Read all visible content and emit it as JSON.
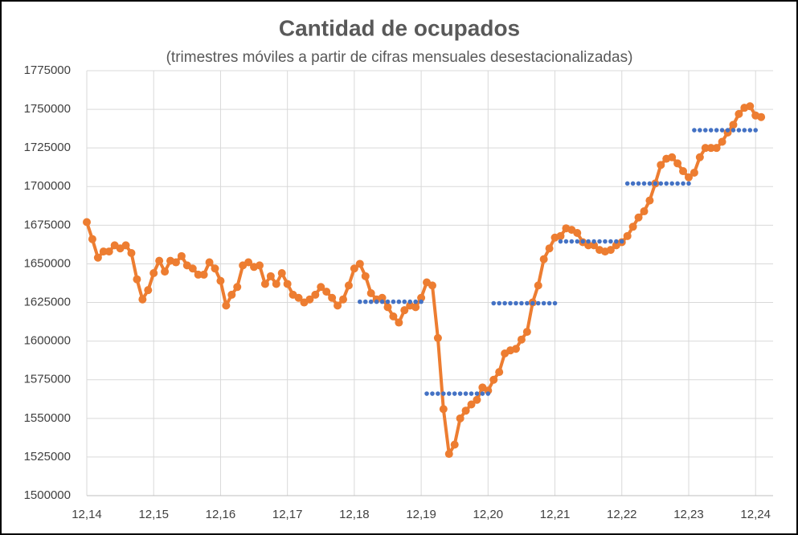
{
  "chart_data": {
    "type": "line",
    "title": "Cantidad de ocupados",
    "subtitle": "(trimestres móviles  a partir de cifras mensuales  desestacionalizadas)",
    "categories": [
      "12,14",
      null,
      null,
      null,
      null,
      null,
      null,
      null,
      null,
      null,
      null,
      null,
      "12,15",
      null,
      null,
      null,
      null,
      null,
      null,
      null,
      null,
      null,
      null,
      null,
      "12,16",
      null,
      null,
      null,
      null,
      null,
      null,
      null,
      null,
      null,
      null,
      null,
      "12,17",
      null,
      null,
      null,
      null,
      null,
      null,
      null,
      null,
      null,
      null,
      null,
      "12,18",
      null,
      null,
      null,
      null,
      null,
      null,
      null,
      null,
      null,
      null,
      null,
      "12,19",
      null,
      null,
      null,
      null,
      null,
      null,
      null,
      null,
      null,
      null,
      null,
      "12,20",
      null,
      null,
      null,
      null,
      null,
      null,
      null,
      null,
      null,
      null,
      null,
      "12,21",
      null,
      null,
      null,
      null,
      null,
      null,
      null,
      null,
      null,
      null,
      null,
      "12,22",
      null,
      null,
      null,
      null,
      null,
      null,
      null,
      null,
      null,
      null,
      null,
      "12,23",
      null,
      null,
      null,
      null,
      null,
      null,
      null,
      null,
      null,
      null,
      null,
      "12,24",
      null
    ],
    "series": [
      {
        "color": "#ed7d31",
        "values": [
          1677000,
          1666000,
          1654000,
          1658000,
          1658000,
          1662000,
          1660000,
          1662000,
          1657000,
          1640000,
          1627000,
          1633000,
          1644000,
          1652000,
          1645000,
          1652000,
          1651000,
          1655000,
          1649000,
          1647000,
          1643000,
          1643000,
          1651000,
          1647000,
          1639000,
          1623000,
          1630000,
          1635000,
          1649000,
          1651000,
          1648000,
          1649000,
          1637000,
          1642000,
          1637000,
          1644000,
          1637000,
          1630000,
          1628000,
          1625000,
          1627000,
          1630000,
          1635000,
          1632000,
          1628000,
          1623000,
          1627000,
          1636000,
          1647000,
          1650000,
          1642000,
          1631000,
          1627000,
          1628000,
          1622000,
          1616000,
          1612000,
          1620000,
          1623000,
          1622000,
          1628000,
          1638000,
          1636000,
          1602000,
          1556000,
          1527000,
          1533000,
          1550000,
          1555000,
          1559000,
          1562000,
          1570000,
          1568000,
          1575000,
          1580000,
          1592000,
          1594000,
          1595000,
          1601000,
          1606000,
          1625000,
          1636000,
          1653000,
          1660000,
          1667000,
          1668000,
          1673000,
          1672000,
          1670000,
          1664000,
          1662000,
          1662000,
          1659000,
          1658000,
          1659000,
          1662000,
          1664000,
          1668000,
          1674000,
          1680000,
          1684000,
          1691000,
          1702000,
          1714000,
          1718000,
          1719000,
          1715000,
          1710000,
          1706000,
          1709000,
          1719000,
          1725000,
          1725000,
          1725000,
          1729000,
          1735000,
          1740000,
          1747000,
          1751000,
          1752000,
          1746000,
          1745000
        ]
      },
      {
        "color": "#4472c4",
        "values": [
          null,
          null,
          null,
          null,
          null,
          null,
          null,
          null,
          null,
          null,
          null,
          null,
          null,
          null,
          null,
          null,
          null,
          null,
          null,
          null,
          null,
          null,
          null,
          null,
          null,
          null,
          null,
          null,
          null,
          null,
          null,
          null,
          null,
          null,
          null,
          null,
          null,
          null,
          null,
          null,
          null,
          null,
          null,
          null,
          null,
          null,
          null,
          null,
          null,
          1625500,
          1625500,
          1625500,
          1625500,
          1625500,
          1625500,
          1625500,
          1625500,
          1625500,
          1625500,
          1625500,
          1625500,
          1566000,
          1566000,
          1566000,
          1566000,
          1566000,
          1566000,
          1566000,
          1566000,
          1566000,
          1566000,
          1566000,
          1566000,
          1624500,
          1624500,
          1624500,
          1624500,
          1624500,
          1624500,
          1624500,
          1624500,
          1624500,
          1624500,
          1624500,
          1624500,
          1664500,
          1664500,
          1664500,
          1664500,
          1664500,
          1664500,
          1664500,
          1664500,
          1664500,
          1664500,
          1664500,
          1664500,
          1702000,
          1702000,
          1702000,
          1702000,
          1702000,
          1702000,
          1702000,
          1702000,
          1702000,
          1702000,
          1702000,
          1702000,
          1736500,
          1736500,
          1736500,
          1736500,
          1736500,
          1736500,
          1736500,
          1736500,
          1736500,
          1736500,
          1736500,
          1736500,
          null
        ]
      }
    ],
    "ylim": [
      1500000,
      1775000
    ],
    "yticks": [
      1500000,
      1525000,
      1550000,
      1575000,
      1600000,
      1625000,
      1650000,
      1675000,
      1700000,
      1725000,
      1750000,
      1775000
    ],
    "grid": true
  }
}
